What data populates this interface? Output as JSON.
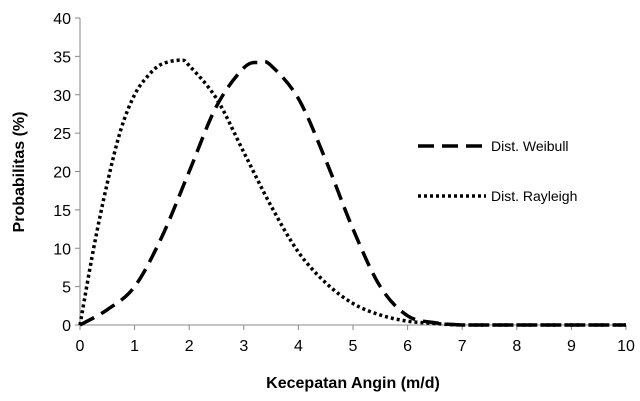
{
  "chart_data": {
    "type": "line",
    "title": "",
    "xlabel": "Kecepatan Angin (m/d)",
    "ylabel": "Probabilitas (%)",
    "xlim": [
      0,
      10
    ],
    "ylim": [
      0,
      40
    ],
    "x_ticks": [
      0,
      1,
      2,
      3,
      4,
      5,
      6,
      7,
      8,
      9,
      10
    ],
    "y_ticks": [
      0,
      5,
      10,
      15,
      20,
      25,
      30,
      35,
      40
    ],
    "grid": false,
    "legend_position": "right",
    "series": [
      {
        "name": "Dist. Weibull",
        "style": "dashed",
        "color": "#000000",
        "x": [
          0,
          0.5,
          1,
          1.5,
          2,
          2.5,
          3,
          3.3,
          3.5,
          4,
          4.5,
          5,
          5.5,
          6,
          6.5,
          7,
          7.5,
          8,
          9,
          10
        ],
        "y": [
          0,
          2,
          5,
          11.5,
          20,
          28.5,
          33.5,
          34.2,
          33.8,
          29.5,
          21.5,
          12.5,
          5,
          1.2,
          0.3,
          0,
          0,
          0,
          0,
          0
        ]
      },
      {
        "name": "Dist. Rayleigh",
        "style": "dotted",
        "color": "#000000",
        "x": [
          0,
          0.25,
          0.5,
          0.75,
          1,
          1.25,
          1.5,
          1.85,
          2,
          2.5,
          3,
          3.5,
          4,
          4.5,
          5,
          5.5,
          6,
          6.5,
          7,
          8,
          9,
          10
        ],
        "y": [
          0,
          10,
          18.5,
          25.5,
          30,
          32.5,
          34,
          34.5,
          33.8,
          29.5,
          22.5,
          15.5,
          9.5,
          5.5,
          2.8,
          1.3,
          0.5,
          0.2,
          0,
          0,
          0,
          0
        ]
      }
    ]
  }
}
